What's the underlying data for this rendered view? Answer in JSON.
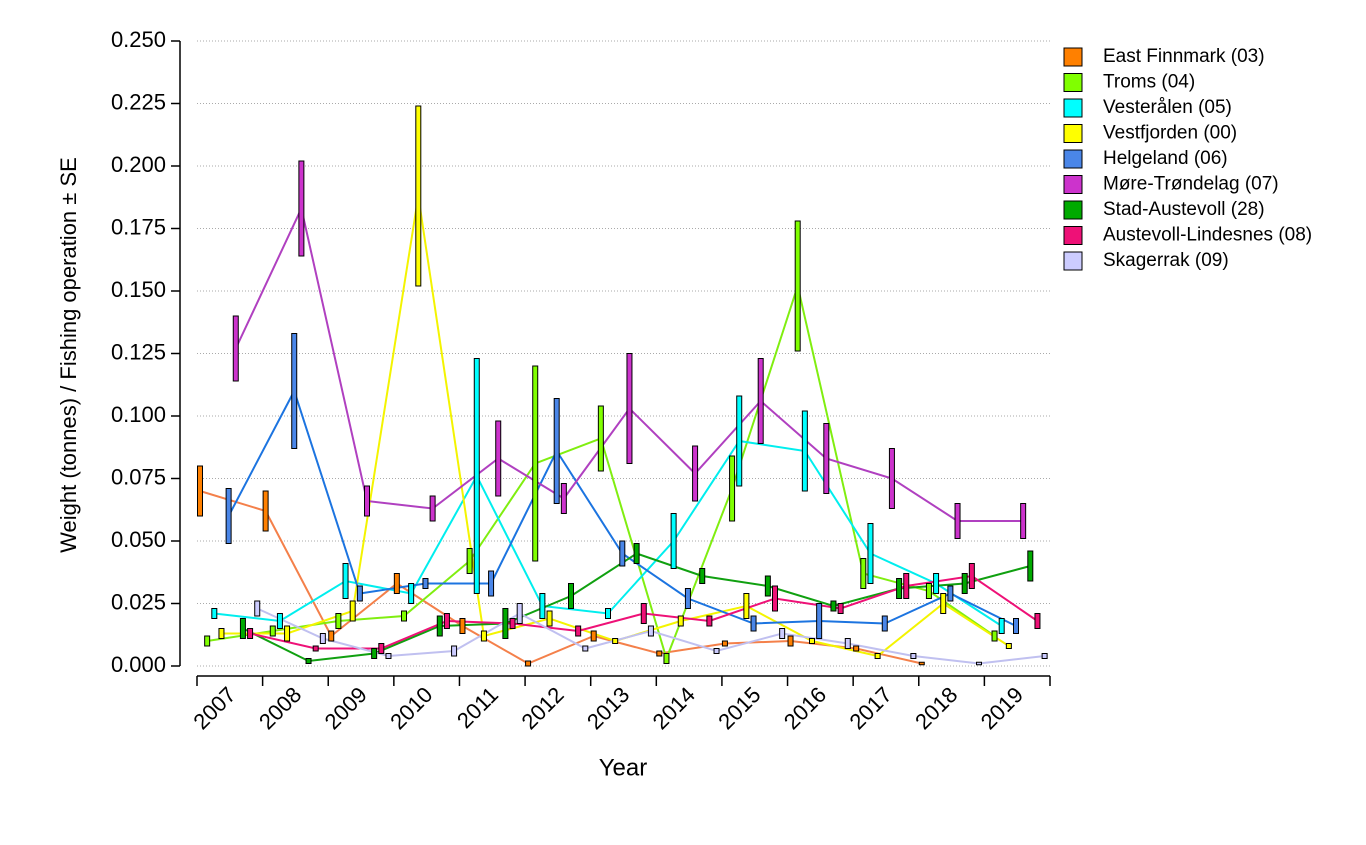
{
  "chart_data": {
    "type": "line",
    "x_label": "Year",
    "y_label": "Weight (tonnes) / Fishing operation ± SE",
    "categories": [
      "2007",
      "2008",
      "2009",
      "2010",
      "2011",
      "2012",
      "2013",
      "2014",
      "2015",
      "2016",
      "2017",
      "2018",
      "2019"
    ],
    "ylim": [
      0,
      0.25
    ],
    "yticks": [
      {
        "value": 0,
        "label": "0.000"
      },
      {
        "value": 0.025,
        "label": "0.025"
      },
      {
        "value": 0.05,
        "label": "0.050"
      },
      {
        "value": 0.075,
        "label": "0.075"
      },
      {
        "value": 0.1,
        "label": "0.100"
      },
      {
        "value": 0.125,
        "label": "0.125"
      },
      {
        "value": 0.15,
        "label": "0.150"
      },
      {
        "value": 0.175,
        "label": "0.175"
      },
      {
        "value": 0.2,
        "label": "0.200"
      },
      {
        "value": 0.225,
        "label": "0.225"
      },
      {
        "value": 0.25,
        "label": "0.250"
      }
    ],
    "grid": true,
    "legend": "right",
    "series": [
      {
        "name": "East Finnmark (03)",
        "color": "#ff8000",
        "line_color": "#f4804a",
        "values": [
          0.07,
          0.062,
          0.012,
          0.033,
          0.016,
          0.001,
          0.012,
          0.005,
          0.009,
          0.01,
          0.007,
          0.001,
          null
        ],
        "se": [
          0.01,
          0.008,
          0.002,
          0.004,
          0.003,
          0.001,
          0.002,
          0.001,
          0.001,
          0.002,
          0.001,
          0.0005,
          null
        ]
      },
      {
        "name": "Troms (04)",
        "color": "#80ff00",
        "line_color": "#80ee10",
        "values": [
          0.01,
          0.014,
          0.018,
          0.02,
          0.042,
          0.081,
          0.091,
          0.003,
          0.071,
          0.152,
          0.037,
          0.03,
          0.012
        ],
        "se": [
          0.002,
          0.002,
          0.003,
          0.002,
          0.005,
          0.039,
          0.013,
          0.002,
          0.013,
          0.026,
          0.006,
          0.003,
          0.002
        ]
      },
      {
        "name": "Vesterålen (05)",
        "color": "#00ffff",
        "line_color": "#00eeee",
        "values": [
          0.021,
          0.018,
          0.034,
          0.029,
          0.076,
          0.024,
          0.021,
          0.05,
          0.09,
          0.086,
          0.045,
          0.033,
          0.016
        ],
        "se": [
          0.002,
          0.003,
          0.007,
          0.004,
          0.047,
          0.005,
          0.002,
          0.011,
          0.018,
          0.016,
          0.012,
          0.004,
          0.003
        ]
      },
      {
        "name": "Vestfjorden (00)",
        "color": "#ffff00",
        "line_color": "#f4f400",
        "values": [
          0.013,
          0.013,
          0.022,
          0.188,
          0.012,
          0.019,
          0.01,
          0.018,
          0.024,
          0.01,
          0.004,
          0.025,
          0.008
        ],
        "se": [
          0.002,
          0.003,
          0.004,
          0.036,
          0.002,
          0.003,
          0.001,
          0.002,
          0.005,
          0.001,
          0.001,
          0.004,
          0.001
        ]
      },
      {
        "name": "Helgeland (06)",
        "color": "#4a86e8",
        "line_color": "#1c74e0",
        "values": [
          0.06,
          0.11,
          0.029,
          0.033,
          0.033,
          0.086,
          0.045,
          0.027,
          0.017,
          0.018,
          0.017,
          0.029,
          0.016
        ],
        "se": [
          0.011,
          0.023,
          0.003,
          0.002,
          0.005,
          0.021,
          0.005,
          0.004,
          0.003,
          0.007,
          0.003,
          0.003,
          0.003
        ]
      },
      {
        "name": "Møre-Trøndelag (07)",
        "color": "#cc33cc",
        "line_color": "#b040c0",
        "values": [
          0.127,
          0.183,
          0.066,
          0.063,
          0.083,
          0.067,
          0.103,
          0.077,
          0.106,
          0.083,
          0.075,
          0.058,
          0.058
        ],
        "se": [
          0.013,
          0.019,
          0.006,
          0.005,
          0.015,
          0.006,
          0.022,
          0.011,
          0.017,
          0.014,
          0.012,
          0.007,
          0.007
        ]
      },
      {
        "name": "Stad-Austevoll (28)",
        "color": "#00aa00",
        "line_color": "#10a010",
        "values": [
          0.015,
          0.002,
          0.005,
          0.016,
          0.017,
          0.028,
          0.045,
          0.036,
          0.032,
          0.024,
          0.031,
          0.033,
          0.04
        ],
        "se": [
          0.004,
          0.001,
          0.002,
          0.004,
          0.006,
          0.005,
          0.004,
          0.003,
          0.004,
          0.002,
          0.004,
          0.004,
          0.006
        ]
      },
      {
        "name": "Austevoll-Lindesnes (08)",
        "color": "#ee1177",
        "line_color": "#ee1177",
        "values": [
          0.013,
          0.007,
          0.007,
          0.018,
          0.017,
          0.014,
          0.021,
          0.018,
          0.027,
          0.023,
          0.032,
          0.036,
          0.018
        ],
        "se": [
          0.002,
          0.001,
          0.002,
          0.003,
          0.002,
          0.002,
          0.004,
          0.002,
          0.005,
          0.002,
          0.005,
          0.005,
          0.003
        ]
      },
      {
        "name": "Skagerrak (09)",
        "color": "#ccccff",
        "line_color": "#c0c0f0",
        "values": [
          0.023,
          0.011,
          0.004,
          0.006,
          0.021,
          0.007,
          0.014,
          0.006,
          0.013,
          0.009,
          0.004,
          0.001,
          0.004
        ],
        "se": [
          0.003,
          0.002,
          0.001,
          0.002,
          0.004,
          0.001,
          0.002,
          0.001,
          0.002,
          0.002,
          0.001,
          0.0005,
          0.001
        ]
      }
    ]
  }
}
